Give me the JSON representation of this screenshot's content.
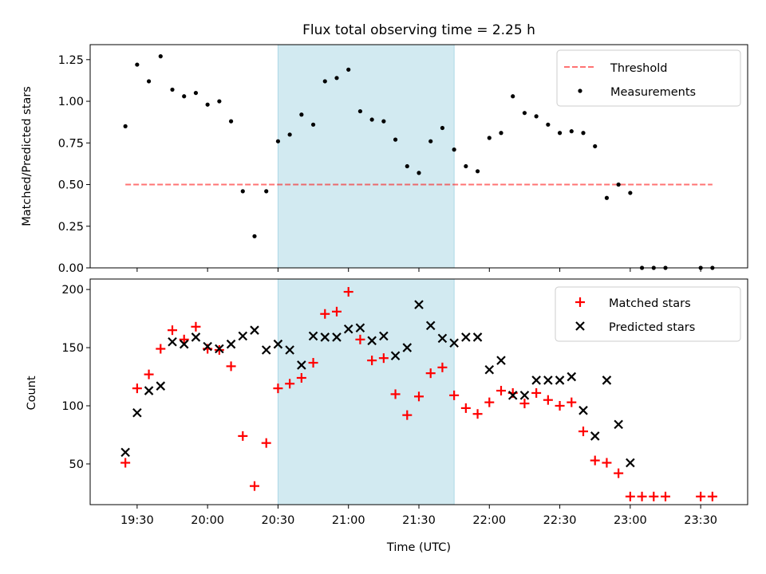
{
  "chart_data": [
    {
      "type": "scatter",
      "title": "Flux total observing time = 2.25 h",
      "ylabel": "Matched/Predicted stars",
      "xlabel": "",
      "ylim": [
        0,
        1.34
      ],
      "yticks": [
        0.0,
        0.25,
        0.5,
        0.75,
        1.0,
        1.25
      ],
      "ytick_labels": [
        "0.00",
        "0.25",
        "0.50",
        "0.75",
        "1.00",
        "1.25"
      ],
      "shaded_interval": [
        "20:30",
        "21:45"
      ],
      "shade_color": "#add8e6",
      "legend_position": "top-right",
      "threshold": {
        "name": "Threshold",
        "value": 0.5,
        "x_range": [
          "19:25",
          "23:35"
        ],
        "color": "#ff0000",
        "style": "dashed"
      },
      "series": [
        {
          "name": "Measurements",
          "marker": "dot",
          "color": "#000000",
          "x": [
            "19:25",
            "19:30",
            "19:35",
            "19:40",
            "19:45",
            "19:50",
            "19:55",
            "20:00",
            "20:05",
            "20:10",
            "20:15",
            "20:20",
            "20:25",
            "20:30",
            "20:35",
            "20:40",
            "20:45",
            "20:50",
            "20:55",
            "21:00",
            "21:05",
            "21:10",
            "21:15",
            "21:20",
            "21:25",
            "21:30",
            "21:35",
            "21:40",
            "21:45",
            "21:50",
            "21:55",
            "22:00",
            "22:05",
            "22:10",
            "22:15",
            "22:20",
            "22:25",
            "22:30",
            "22:35",
            "22:40",
            "22:45",
            "22:50",
            "22:55",
            "23:00",
            "23:05",
            "23:10",
            "23:15",
            "23:30",
            "23:35"
          ],
          "y": [
            0.85,
            1.22,
            1.12,
            1.27,
            1.07,
            1.03,
            1.05,
            0.98,
            1.0,
            0.88,
            0.46,
            0.19,
            0.46,
            0.76,
            0.8,
            0.92,
            0.86,
            1.12,
            1.14,
            1.19,
            0.94,
            0.89,
            0.88,
            0.77,
            0.61,
            0.57,
            0.76,
            0.84,
            0.71,
            0.61,
            0.58,
            0.78,
            0.81,
            1.03,
            0.93,
            0.91,
            0.86,
            0.81,
            0.82,
            0.81,
            0.73,
            0.42,
            0.5,
            0.45,
            0.0,
            0.0,
            0.0,
            0.0,
            0.0
          ]
        }
      ]
    },
    {
      "type": "scatter",
      "title": "",
      "ylabel": "Count",
      "xlabel": "Time (UTC)",
      "ylim": [
        15,
        209
      ],
      "yticks": [
        50,
        100,
        150,
        200
      ],
      "ytick_labels": [
        "50",
        "100",
        "150",
        "200"
      ],
      "xlim": [
        "19:10",
        "23:50"
      ],
      "xticks": [
        "19:30",
        "20:00",
        "20:30",
        "21:00",
        "21:30",
        "22:00",
        "22:30",
        "23:00",
        "23:30"
      ],
      "shaded_interval": [
        "20:30",
        "21:45"
      ],
      "shade_color": "#add8e6",
      "legend_position": "top-right",
      "series": [
        {
          "name": "Matched stars",
          "marker": "plus",
          "color": "#ff0000",
          "x": [
            "19:25",
            "19:30",
            "19:35",
            "19:40",
            "19:45",
            "19:50",
            "19:55",
            "20:00",
            "20:05",
            "20:10",
            "20:15",
            "20:20",
            "20:25",
            "20:30",
            "20:35",
            "20:40",
            "20:45",
            "20:50",
            "20:55",
            "21:00",
            "21:05",
            "21:10",
            "21:15",
            "21:20",
            "21:25",
            "21:30",
            "21:35",
            "21:40",
            "21:45",
            "21:50",
            "21:55",
            "22:00",
            "22:05",
            "22:10",
            "22:15",
            "22:20",
            "22:25",
            "22:30",
            "22:35",
            "22:40",
            "22:45",
            "22:50",
            "22:55",
            "23:00",
            "23:05",
            "23:10",
            "23:15",
            "23:30",
            "23:35"
          ],
          "y": [
            51,
            115,
            127,
            149,
            165,
            157,
            168,
            149,
            148,
            134,
            74,
            31,
            68,
            115,
            119,
            124,
            137,
            179,
            181,
            198,
            157,
            139,
            141,
            110,
            92,
            108,
            128,
            133,
            109,
            98,
            93,
            103,
            113,
            111,
            102,
            111,
            105,
            100,
            103,
            78,
            53,
            51,
            42,
            22,
            22,
            22,
            22,
            22,
            22
          ]
        },
        {
          "name": "Predicted stars",
          "marker": "x",
          "color": "#000000",
          "x": [
            "19:25",
            "19:30",
            "19:35",
            "19:40",
            "19:45",
            "19:50",
            "19:55",
            "20:00",
            "20:05",
            "20:10",
            "20:15",
            "20:20",
            "20:25",
            "20:30",
            "20:35",
            "20:40",
            "20:45",
            "20:50",
            "20:55",
            "21:00",
            "21:05",
            "21:10",
            "21:15",
            "21:20",
            "21:25",
            "21:30",
            "21:35",
            "21:40",
            "21:45",
            "21:50",
            "21:55",
            "22:00",
            "22:05",
            "22:10",
            "22:15",
            "22:20",
            "22:25",
            "22:30",
            "22:35",
            "22:40",
            "22:45",
            "22:50",
            "22:55",
            "23:00"
          ],
          "y": [
            60,
            94,
            113,
            117,
            155,
            153,
            159,
            151,
            149,
            153,
            160,
            165,
            148,
            153,
            148,
            135,
            160,
            159,
            159,
            166,
            167,
            156,
            160,
            143,
            150,
            187,
            169,
            158,
            154,
            159,
            159,
            131,
            139,
            109,
            109,
            122,
            122,
            122,
            125,
            96,
            74,
            122,
            84,
            51
          ]
        }
      ]
    }
  ]
}
